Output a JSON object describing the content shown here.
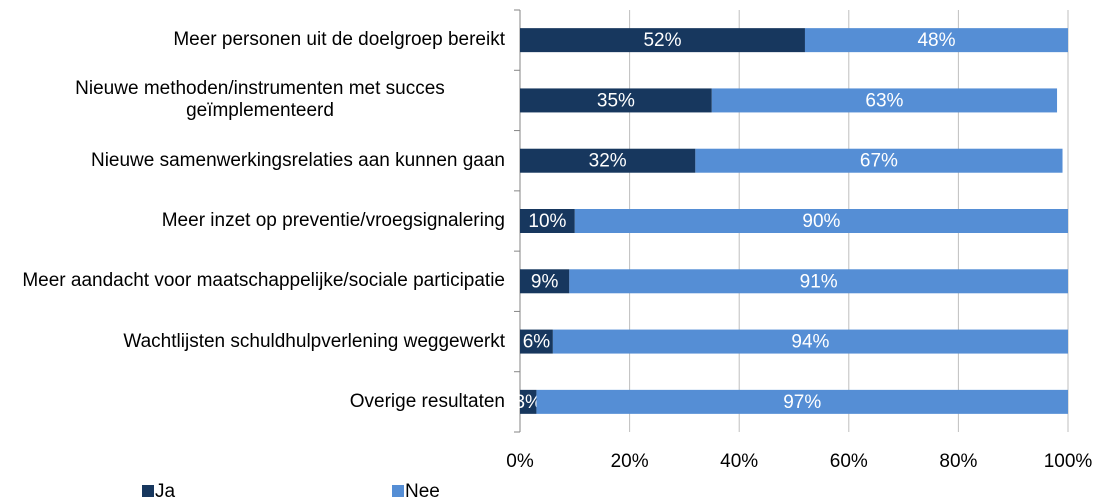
{
  "chart_data": {
    "type": "bar",
    "orientation": "horizontal",
    "stacked": true,
    "categories": [
      "Meer personen uit de doelgroep bereikt",
      "Nieuwe methoden/instrumenten met succes geïmplementeerd",
      "Nieuwe samenwerkingsrelaties aan kunnen gaan",
      "Meer inzet op preventie/vroegsignalering",
      "Meer aandacht voor maatschappelijke/sociale participatie",
      "Wachtlijsten schuldhulpverlening weggewerkt",
      "Overige resultaten"
    ],
    "series": [
      {
        "name": "Ja",
        "color": "#17375e",
        "values": [
          52,
          35,
          32,
          10,
          9,
          6,
          3
        ],
        "value_labels": [
          "52%",
          "35%",
          "32%",
          "10%",
          "9%",
          "6%",
          "3%"
        ]
      },
      {
        "name": "Nee",
        "color": "#558ed5",
        "values": [
          48,
          63,
          67,
          90,
          91,
          94,
          97
        ],
        "value_labels": [
          "48%",
          "63%",
          "67%",
          "90%",
          "91%",
          "94%",
          "97%"
        ]
      }
    ],
    "xlim": [
      0,
      100
    ],
    "xticks": [
      {
        "value": 0,
        "label": "0%"
      },
      {
        "value": 20,
        "label": "20%"
      },
      {
        "value": 40,
        "label": "40%"
      },
      {
        "value": 60,
        "label": "60%"
      },
      {
        "value": 80,
        "label": "80%"
      },
      {
        "value": 100,
        "label": "100%"
      }
    ],
    "grid": true,
    "legend": "bottom"
  }
}
